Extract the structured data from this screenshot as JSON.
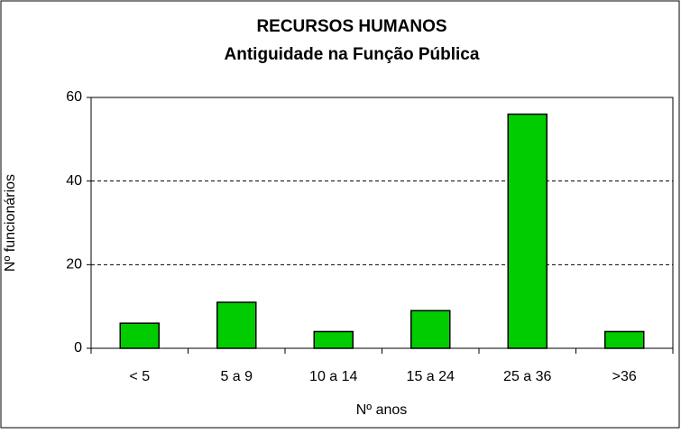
{
  "chart_data": {
    "type": "bar",
    "title": "RECURSOS HUMANOS",
    "subtitle": "Antiguidade na Função Pública",
    "categories": [
      "< 5",
      "5 a 9",
      "10 a 14",
      "15 a 24",
      "25 a 36",
      ">36"
    ],
    "values": [
      6,
      11,
      4,
      9,
      56,
      4
    ],
    "color": "#00cc00",
    "x_label": "Nº anos",
    "y_label": "Nº funcionários",
    "ylim": [
      0,
      60
    ],
    "yticks": [
      0,
      20,
      40,
      60
    ],
    "grid": true
  }
}
